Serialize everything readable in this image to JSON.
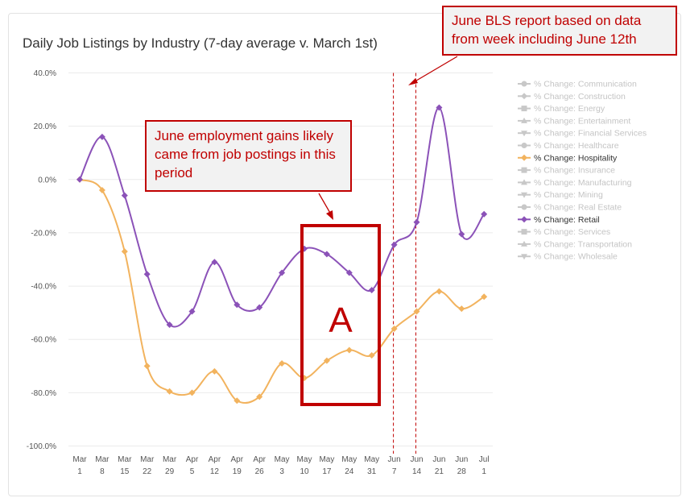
{
  "title": "Daily Job Listings by Industry (7-day average v. March 1st)",
  "annotations": {
    "bls_report": "June BLS report based on data from week including June 12th",
    "gains": "June employment gains likely came from job postings in this period",
    "box_label": "A"
  },
  "colors": {
    "retail": "#8b52b8",
    "hospitality": "#f2b35e",
    "inactive": "#c8c8c8",
    "annotation": "#c00000"
  },
  "chart_data": {
    "type": "line",
    "title": "Daily Job Listings by Industry (7-day average v. March 1st)",
    "x_ticks": [
      [
        "Mar",
        "1"
      ],
      [
        "Mar",
        "8"
      ],
      [
        "Mar",
        "15"
      ],
      [
        "Mar",
        "22"
      ],
      [
        "Mar",
        "29"
      ],
      [
        "Apr",
        "5"
      ],
      [
        "Apr",
        "12"
      ],
      [
        "Apr",
        "19"
      ],
      [
        "Apr",
        "26"
      ],
      [
        "May",
        "3"
      ],
      [
        "May",
        "10"
      ],
      [
        "May",
        "17"
      ],
      [
        "May",
        "24"
      ],
      [
        "May",
        "31"
      ],
      [
        "Jun",
        "7"
      ],
      [
        "Jun",
        "14"
      ],
      [
        "Jun",
        "21"
      ],
      [
        "Jun",
        "28"
      ],
      [
        "Jul",
        "1"
      ]
    ],
    "y_ticks": [
      "40.0%",
      "20.0%",
      "0.0%",
      "-20.0%",
      "-40.0%",
      "-60.0%",
      "-80.0%",
      "-100.0%"
    ],
    "ylim": [
      -100,
      40
    ],
    "grid": true,
    "legend_position": "right",
    "legend": [
      {
        "name": "% Change: Communication",
        "marker": "circle",
        "active": false
      },
      {
        "name": "% Change: Construction",
        "marker": "diamond",
        "active": false
      },
      {
        "name": "% Change: Energy",
        "marker": "square",
        "active": false
      },
      {
        "name": "% Change: Entertainment",
        "marker": "triangle",
        "active": false
      },
      {
        "name": "% Change: Financial Services",
        "marker": "triangle-down",
        "active": false
      },
      {
        "name": "% Change: Healthcare",
        "marker": "circle",
        "active": false
      },
      {
        "name": "% Change: Hospitality",
        "marker": "diamond",
        "active": true,
        "color": "#f2b35e"
      },
      {
        "name": "% Change: Insurance",
        "marker": "square",
        "active": false
      },
      {
        "name": "% Change: Manufacturing",
        "marker": "triangle",
        "active": false
      },
      {
        "name": "% Change: Mining",
        "marker": "triangle-down",
        "active": false
      },
      {
        "name": "% Change: Real Estate",
        "marker": "circle",
        "active": false
      },
      {
        "name": "% Change: Retail",
        "marker": "diamond",
        "active": true,
        "color": "#8b52b8"
      },
      {
        "name": "% Change: Services",
        "marker": "square",
        "active": false
      },
      {
        "name": "% Change: Transportation",
        "marker": "triangle",
        "active": false
      },
      {
        "name": "% Change: Wholesale",
        "marker": "triangle-down",
        "active": false
      }
    ],
    "series": [
      {
        "name": "% Change: Retail",
        "color": "#8b52b8",
        "values": [
          0,
          16,
          -6,
          -35.5,
          -54.5,
          -49.5,
          -31,
          -47,
          -48,
          -35,
          -26,
          -28,
          -35,
          -41.5,
          -24.5,
          -16,
          27,
          -20.5,
          -13
        ]
      },
      {
        "name": "% Change: Hospitality",
        "color": "#f2b35e",
        "values": [
          0,
          -4,
          -27,
          -70,
          -79.5,
          -80,
          -72,
          -83,
          -81.5,
          -69,
          -74.5,
          -68,
          -64,
          -66,
          -56,
          -49.5,
          -42,
          -48.5,
          -44
        ]
      }
    ],
    "reference_lines_at": [
      "Jun 7",
      "Jun 14"
    ]
  }
}
